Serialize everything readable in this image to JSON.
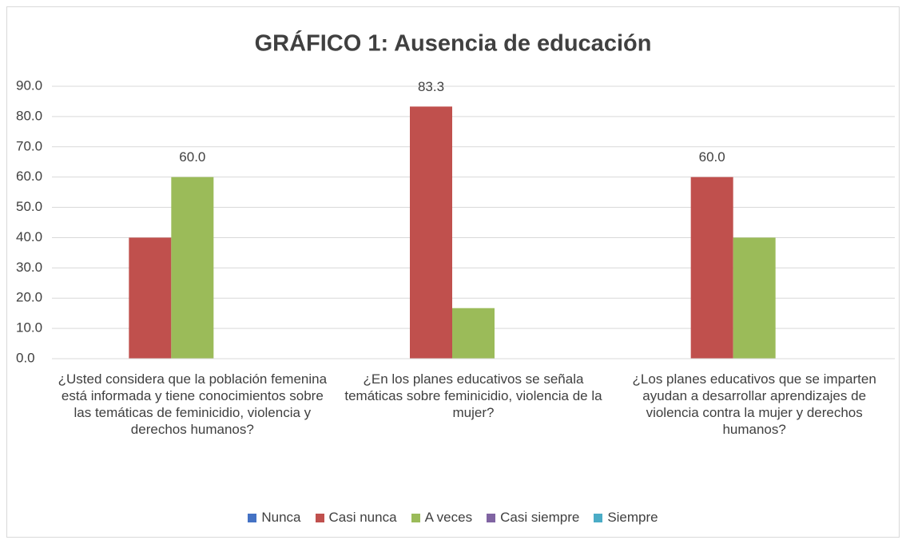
{
  "chart_data": {
    "type": "bar",
    "title": "GRÁFICO 1: Ausencia de educación",
    "categories": [
      "¿Usted considera que la población femenina está informada y tiene conocimientos sobre las temáticas de feminicidio, violencia y derechos humanos?",
      "¿En los planes educativos se señala temáticas sobre feminicidio, violencia de la mujer?",
      "¿Los planes educativos que se imparten ayudan a desarrollar aprendizajes de violencia contra la mujer y derechos humanos?"
    ],
    "series": [
      {
        "name": "Nunca",
        "color": "#4472c4",
        "values": [
          0,
          0,
          0
        ]
      },
      {
        "name": "Casi nunca",
        "color": "#c0504d",
        "values": [
          40,
          83.3,
          60
        ],
        "value_labels": [
          null,
          "83.3",
          "60.0"
        ]
      },
      {
        "name": "A veces",
        "color": "#9bbb59",
        "values": [
          60,
          16.7,
          40
        ],
        "value_labels": [
          "60.0",
          null,
          null
        ]
      },
      {
        "name": "Casi siempre",
        "color": "#8064a2",
        "values": [
          0,
          0,
          0
        ]
      },
      {
        "name": "Siempre",
        "color": "#4bacc6",
        "values": [
          0,
          0,
          0
        ]
      }
    ],
    "ylim": [
      0,
      90
    ],
    "yticks": [
      {
        "value": 0,
        "label": "0.0"
      },
      {
        "value": 10,
        "label": "10.0"
      },
      {
        "value": 20,
        "label": "20.0"
      },
      {
        "value": 30,
        "label": "30.0"
      },
      {
        "value": 40,
        "label": "40.0"
      },
      {
        "value": 50,
        "label": "50.0"
      },
      {
        "value": 60,
        "label": "60.0"
      },
      {
        "value": 70,
        "label": "70.0"
      },
      {
        "value": 80,
        "label": "80.0"
      },
      {
        "value": 90,
        "label": "90.0"
      }
    ],
    "grid": true,
    "legend": "bottom"
  }
}
